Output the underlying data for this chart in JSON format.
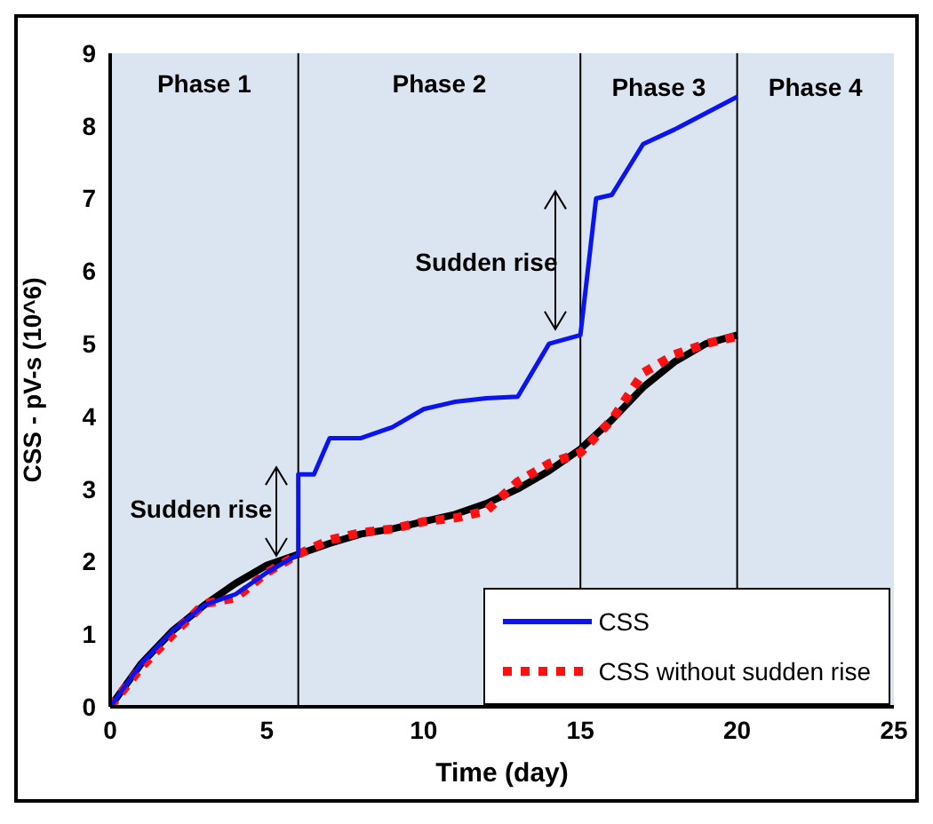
{
  "chart_data": {
    "type": "line",
    "xlabel": "Time (day)",
    "ylabel": "CSS - pV-s (10^6)",
    "x": [
      0,
      1,
      2,
      3,
      4,
      5,
      6,
      6,
      6.5,
      7,
      8,
      9,
      10,
      11,
      12,
      13,
      14,
      15,
      15.5,
      16,
      17,
      18,
      20
    ],
    "series": [
      {
        "name": "CSS",
        "color": "#0a14f0",
        "line_style": "solid",
        "values": [
          0,
          0.6,
          1.05,
          1.4,
          1.55,
          1.85,
          2.1,
          3.2,
          3.2,
          3.7,
          3.7,
          3.85,
          4.1,
          4.2,
          4.25,
          4.27,
          5.0,
          5.12,
          7.0,
          7.05,
          7.75,
          7.95,
          8.4
        ]
      },
      {
        "name": "CSS without sudden rise",
        "color": "#ff1010",
        "line_style": "dotted",
        "x": [
          0,
          1,
          2,
          3,
          4,
          5,
          6,
          7,
          8,
          9,
          10,
          11,
          12,
          13,
          14,
          15,
          16,
          17,
          18,
          19,
          20
        ],
        "values": [
          0,
          0.55,
          1.0,
          1.42,
          1.5,
          1.85,
          2.1,
          2.3,
          2.4,
          2.45,
          2.55,
          2.6,
          2.7,
          3.1,
          3.35,
          3.5,
          3.95,
          4.6,
          4.85,
          5.0,
          5.1
        ]
      },
      {
        "color": "#000000",
        "line_style": "solid",
        "x": [
          0,
          1,
          2,
          3,
          4,
          5,
          6,
          7,
          8,
          9,
          10,
          11,
          12,
          13,
          14,
          15,
          16,
          17,
          18,
          19,
          20
        ],
        "values": [
          0,
          0.6,
          1.05,
          1.4,
          1.7,
          1.95,
          2.1,
          2.25,
          2.38,
          2.45,
          2.55,
          2.65,
          2.8,
          3.0,
          3.25,
          3.55,
          3.95,
          4.4,
          4.75,
          5.0,
          5.12
        ]
      }
    ],
    "xlim": [
      0,
      25
    ],
    "xticks": [
      0,
      5,
      10,
      15,
      20,
      25
    ],
    "ylim": [
      0,
      9
    ],
    "yticks": [
      0,
      1,
      2,
      3,
      4,
      5,
      6,
      7,
      8,
      9
    ],
    "ref_lines": [
      {
        "axis": "x",
        "value": 6,
        "color": "#000000"
      },
      {
        "axis": "x",
        "value": 15,
        "color": "#000000"
      },
      {
        "axis": "x",
        "value": 20,
        "color": "#000000"
      }
    ],
    "annotations": [
      "Phase 1",
      "Phase 2",
      "Phase 3",
      "Phase 4",
      "Sudden rise",
      "Sudden rise"
    ],
    "legend": "bottom right",
    "marker": "none",
    "grid": false
  }
}
